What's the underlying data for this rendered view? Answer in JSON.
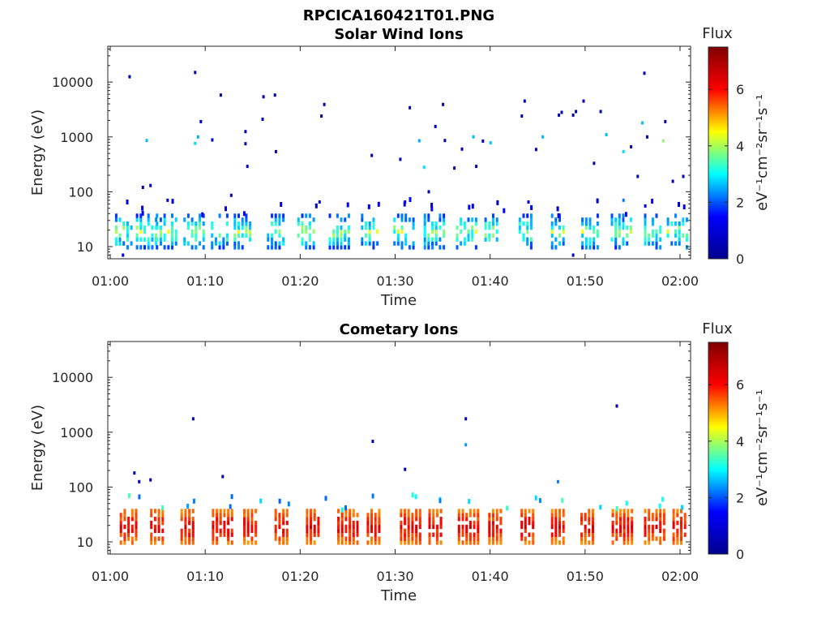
{
  "figure_title": "RPCICA160421T01.PNG",
  "colors": {
    "colormap": [
      "#00008f",
      "#0000ff",
      "#00ffff",
      "#ffff00",
      "#ff0000",
      "#800000"
    ],
    "axis": "#262626",
    "background": "#ffffff"
  },
  "chart_data": [
    {
      "type": "heatmap",
      "title": "Solar Wind Ions",
      "xlabel": "Time",
      "ylabel": "Energy (eV)",
      "xticks": [
        "01:00",
        "01:10",
        "01:20",
        "01:30",
        "01:40",
        "01:50",
        "02:00"
      ],
      "xlim": [
        "01:00",
        "02:00"
      ],
      "yscale": "log",
      "yticks": [
        10,
        100,
        1000,
        10000
      ],
      "yticklabels": [
        "10",
        "100",
        "1000",
        "10000"
      ],
      "ylim": [
        6,
        45000
      ],
      "colorbar": {
        "label": "eV⁻¹cm⁻²sr⁻¹s⁻¹",
        "title": "Flux",
        "ticks": [
          0,
          2,
          4,
          6
        ],
        "ticklabels": [
          "0",
          "2",
          "4",
          "6"
        ],
        "clim": [
          0,
          7.5
        ]
      },
      "band_low_energy": [
        9,
        40
      ],
      "band_flux_range": [
        0.5,
        4.5
      ],
      "burst_times_min": [
        1.5,
        3.7,
        5.8,
        8.7,
        11.6,
        14.0,
        17.5,
        20.7,
        24.0,
        27.4,
        30.8,
        34.0,
        37.4,
        40.4,
        44.0,
        47.4,
        50.6,
        53.7,
        57.2,
        59.6
      ],
      "sporadic_points": [
        {
          "t": 2.0,
          "e": 12500,
          "f": 0.5
        },
        {
          "t": 8.9,
          "e": 15000,
          "f": 0.5
        },
        {
          "t": 11.6,
          "e": 5800,
          "f": 0.5
        },
        {
          "t": 9.5,
          "e": 1900,
          "f": 0.6
        },
        {
          "t": 9.2,
          "e": 1000,
          "f": 2.5
        },
        {
          "t": 8.9,
          "e": 760,
          "f": 2.8
        },
        {
          "t": 10.7,
          "e": 880,
          "f": 0.6
        },
        {
          "t": 3.8,
          "e": 860,
          "f": 2.6
        },
        {
          "t": 14.2,
          "e": 1250,
          "f": 0.5
        },
        {
          "t": 14.2,
          "e": 750,
          "f": 0.5
        },
        {
          "t": 14.4,
          "e": 290,
          "f": 0.5
        },
        {
          "t": 16.0,
          "e": 2100,
          "f": 0.5
        },
        {
          "t": 16.1,
          "e": 5400,
          "f": 0.5
        },
        {
          "t": 17.3,
          "e": 5800,
          "f": 0.5
        },
        {
          "t": 17.4,
          "e": 540,
          "f": 0.5
        },
        {
          "t": 22.2,
          "e": 2400,
          "f": 0.5
        },
        {
          "t": 22.5,
          "e": 3900,
          "f": 0.5
        },
        {
          "t": 27.5,
          "e": 460,
          "f": 0.5
        },
        {
          "t": 30.5,
          "e": 390,
          "f": 0.5
        },
        {
          "t": 31.5,
          "e": 3400,
          "f": 0.5
        },
        {
          "t": 32.5,
          "e": 850,
          "f": 2.5
        },
        {
          "t": 33.0,
          "e": 280,
          "f": 2.8
        },
        {
          "t": 34.2,
          "e": 1550,
          "f": 0.6
        },
        {
          "t": 35.0,
          "e": 3900,
          "f": 0.5
        },
        {
          "t": 35.2,
          "e": 860,
          "f": 0.6
        },
        {
          "t": 36.2,
          "e": 270,
          "f": 0.5
        },
        {
          "t": 37.0,
          "e": 600,
          "f": 0.5
        },
        {
          "t": 38.2,
          "e": 1000,
          "f": 2.6
        },
        {
          "t": 38.5,
          "e": 290,
          "f": 0.5
        },
        {
          "t": 39.2,
          "e": 840,
          "f": 0.5
        },
        {
          "t": 40.0,
          "e": 780,
          "f": 2.7
        },
        {
          "t": 43.3,
          "e": 2400,
          "f": 0.5
        },
        {
          "t": 43.6,
          "e": 4500,
          "f": 0.5
        },
        {
          "t": 44.8,
          "e": 590,
          "f": 0.5
        },
        {
          "t": 45.5,
          "e": 1000,
          "f": 2.6
        },
        {
          "t": 47.2,
          "e": 2500,
          "f": 0.5
        },
        {
          "t": 47.5,
          "e": 2800,
          "f": 0.5
        },
        {
          "t": 48.7,
          "e": 2500,
          "f": 0.5
        },
        {
          "t": 49.0,
          "e": 2900,
          "f": 0.5
        },
        {
          "t": 49.8,
          "e": 4500,
          "f": 0.5
        },
        {
          "t": 50.9,
          "e": 330,
          "f": 0.6
        },
        {
          "t": 51.6,
          "e": 2900,
          "f": 0.5
        },
        {
          "t": 52.2,
          "e": 1100,
          "f": 2.6
        },
        {
          "t": 54.0,
          "e": 540,
          "f": 2.8
        },
        {
          "t": 54.8,
          "e": 660,
          "f": 0.5
        },
        {
          "t": 56.0,
          "e": 1800,
          "f": 2.6
        },
        {
          "t": 56.2,
          "e": 14500,
          "f": 0.5
        },
        {
          "t": 56.5,
          "e": 1000,
          "f": 0.6
        },
        {
          "t": 58.4,
          "e": 1900,
          "f": 0.5
        },
        {
          "t": 58.2,
          "e": 850,
          "f": 3.8
        },
        {
          "t": 59.2,
          "e": 155,
          "f": 0.5
        },
        {
          "t": 60.3,
          "e": 190,
          "f": 0.5
        },
        {
          "t": 3.4,
          "e": 120,
          "f": 0.5
        },
        {
          "t": 4.2,
          "e": 130,
          "f": 0.5
        },
        {
          "t": 12.7,
          "e": 86,
          "f": 0.5
        },
        {
          "t": 33.5,
          "e": 100,
          "f": 0.5
        },
        {
          "t": 54.0,
          "e": 70,
          "f": 2.2
        },
        {
          "t": 55.5,
          "e": 190,
          "f": 0.5
        },
        {
          "t": 6.0,
          "e": 70,
          "f": 0.6
        },
        {
          "t": 22.0,
          "e": 65,
          "f": 1.3
        },
        {
          "t": 31.0,
          "e": 65,
          "f": 1.3
        },
        {
          "t": 44.0,
          "e": 65,
          "f": 1.3
        },
        {
          "t": 56.3,
          "e": 55,
          "f": 0.6
        },
        {
          "t": 1.3,
          "e": 7,
          "f": 1.0
        },
        {
          "t": 48.7,
          "e": 7,
          "f": 0.8
        }
      ]
    },
    {
      "type": "heatmap",
      "title": "Cometary Ions",
      "xlabel": "Time",
      "ylabel": "Energy (eV)",
      "xticks": [
        "01:00",
        "01:10",
        "01:20",
        "01:30",
        "01:40",
        "01:50",
        "02:00"
      ],
      "xlim": [
        "01:00",
        "02:00"
      ],
      "yscale": "log",
      "yticks": [
        10,
        100,
        1000,
        10000
      ],
      "yticklabels": [
        "10",
        "100",
        "1000",
        "10000"
      ],
      "ylim": [
        6,
        45000
      ],
      "colorbar": {
        "label": "eV⁻¹cm⁻²sr⁻¹s⁻¹",
        "title": "Flux",
        "ticks": [
          0,
          2,
          4,
          6
        ],
        "ticklabels": [
          "0",
          "2",
          "4",
          "6"
        ],
        "clim": [
          0,
          7.5
        ]
      },
      "band_low_energy": [
        9,
        40
      ],
      "band_flux_range": [
        4.5,
        6.6
      ],
      "burst_times_min": [
        2.0,
        5.2,
        8.4,
        11.7,
        15.0,
        18.3,
        21.6,
        24.9,
        28.0,
        31.5,
        34.5,
        37.6,
        40.8,
        44.2,
        47.4,
        50.5,
        53.8,
        57.2,
        60.2
      ],
      "sporadic_points": [
        {
          "t": 8.7,
          "e": 1750,
          "f": 0.5
        },
        {
          "t": 27.6,
          "e": 680,
          "f": 0.5
        },
        {
          "t": 31.0,
          "e": 210,
          "f": 0.5
        },
        {
          "t": 37.4,
          "e": 1750,
          "f": 0.5
        },
        {
          "t": 37.4,
          "e": 590,
          "f": 2.4
        },
        {
          "t": 53.3,
          "e": 3000,
          "f": 0.5
        },
        {
          "t": 2.5,
          "e": 180,
          "f": 0.5
        },
        {
          "t": 3.0,
          "e": 125,
          "f": 0.5
        },
        {
          "t": 4.2,
          "e": 135,
          "f": 0.5
        },
        {
          "t": 11.8,
          "e": 155,
          "f": 0.5
        },
        {
          "t": 47.1,
          "e": 125,
          "f": 2.2
        }
      ]
    }
  ]
}
